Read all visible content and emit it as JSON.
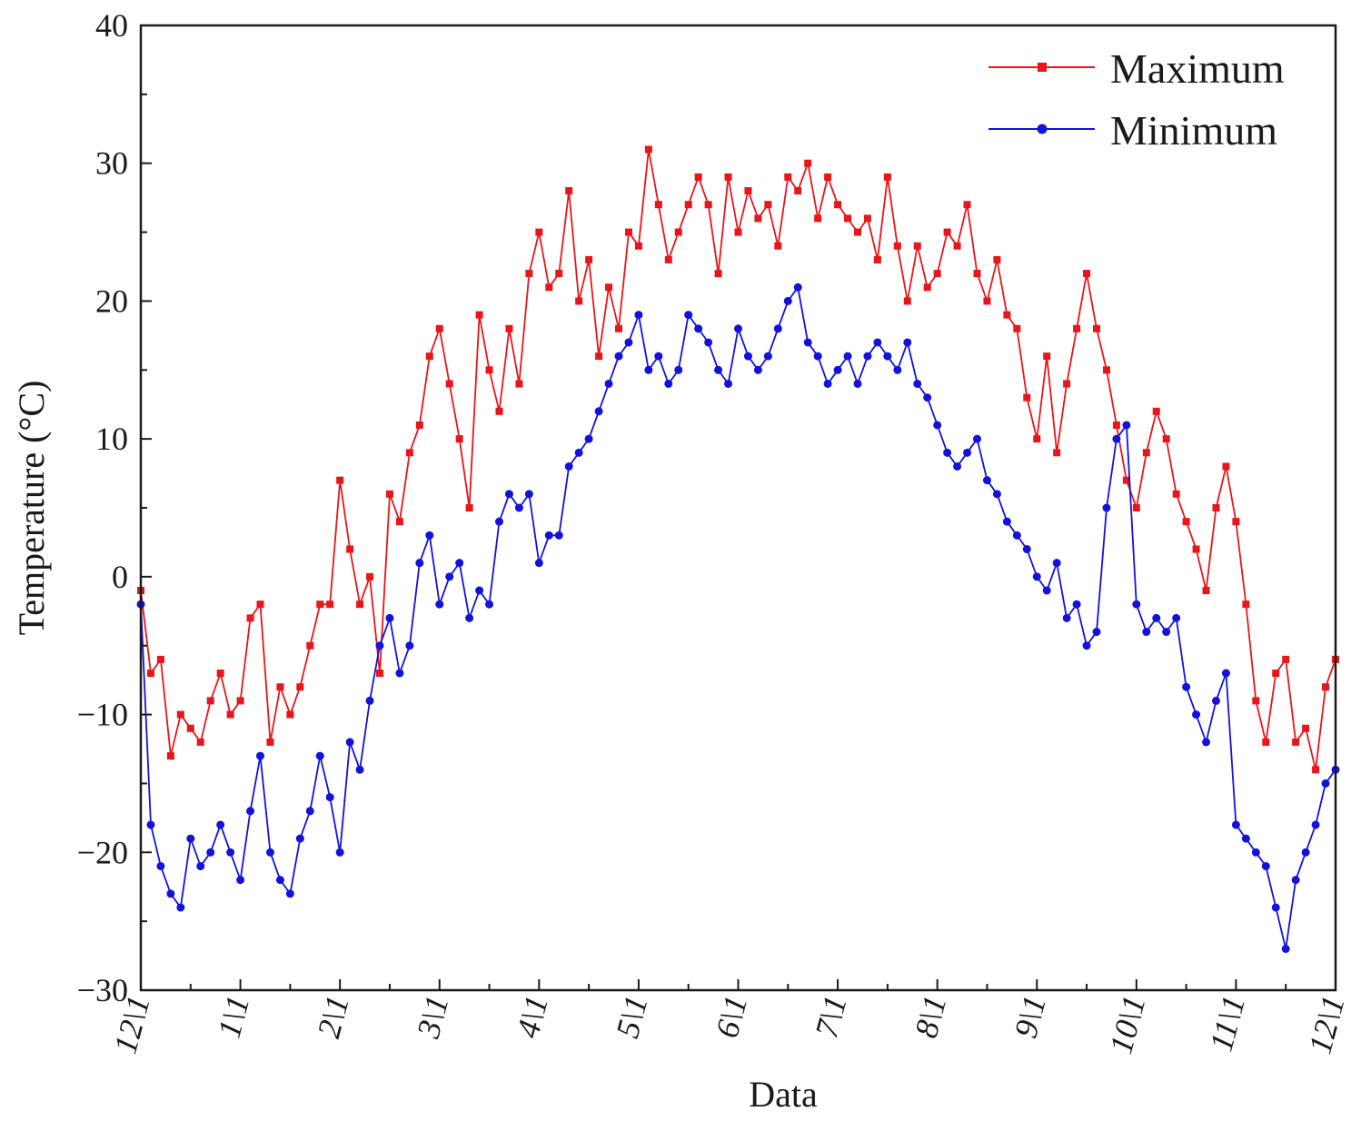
{
  "chart_data": {
    "type": "line",
    "title": "",
    "xlabel": "Data",
    "ylabel": "Temperature (°C)",
    "ylim": [
      -30,
      40
    ],
    "yticks": [
      -30,
      -20,
      -10,
      0,
      10,
      20,
      30,
      40
    ],
    "ytick_labels": [
      "−30",
      "−20",
      "−10",
      "0",
      "10",
      "20",
      "30",
      "40"
    ],
    "xlim": [
      0,
      12
    ],
    "xtick_labels": [
      "12\\1",
      "1\\1",
      "2\\1",
      "3\\1",
      "4\\1",
      "5\\1",
      "6\\1",
      "7\\1",
      "8\\1",
      "9\\1",
      "10\\1",
      "11\\1",
      "12\\1"
    ],
    "grid": false,
    "legend_position": "top-right",
    "series": [
      {
        "name": "Maximum",
        "color": "#e8151b",
        "marker": "square",
        "x": [
          0.0,
          0.1,
          0.2,
          0.3,
          0.4,
          0.5,
          0.6,
          0.7,
          0.8,
          0.9,
          1.0,
          1.1,
          1.2,
          1.3,
          1.4,
          1.5,
          1.6,
          1.7,
          1.8,
          1.9,
          2.0,
          2.1,
          2.2,
          2.3,
          2.4,
          2.5,
          2.6,
          2.7,
          2.8,
          2.9,
          3.0,
          3.1,
          3.2,
          3.3,
          3.4,
          3.5,
          3.6,
          3.7,
          3.8,
          3.9,
          4.0,
          4.1,
          4.2,
          4.3,
          4.4,
          4.5,
          4.6,
          4.7,
          4.8,
          4.9,
          5.0,
          5.1,
          5.2,
          5.3,
          5.4,
          5.5,
          5.6,
          5.7,
          5.8,
          5.9,
          6.0,
          6.1,
          6.2,
          6.3,
          6.4,
          6.5,
          6.6,
          6.7,
          6.8,
          6.9,
          7.0,
          7.1,
          7.2,
          7.3,
          7.4,
          7.5,
          7.6,
          7.7,
          7.8,
          7.9,
          8.0,
          8.1,
          8.2,
          8.3,
          8.4,
          8.5,
          8.6,
          8.7,
          8.8,
          8.9,
          9.0,
          9.1,
          9.2,
          9.3,
          9.4,
          9.5,
          9.6,
          9.7,
          9.8,
          9.9,
          10.0,
          10.1,
          10.2,
          10.3,
          10.4,
          10.5,
          10.6,
          10.7,
          10.8,
          10.9,
          11.0,
          11.1,
          11.2,
          11.3,
          11.4,
          11.5,
          11.6,
          11.7,
          11.8,
          11.9,
          12.0
        ],
        "values": [
          -1,
          -7,
          -6,
          -13,
          -10,
          -11,
          -12,
          -9,
          -7,
          -10,
          -9,
          -3,
          -2,
          -12,
          -8,
          -10,
          -8,
          -5,
          -2,
          -2,
          7,
          2,
          -2,
          0,
          -7,
          6,
          4,
          9,
          11,
          16,
          18,
          14,
          10,
          5,
          19,
          15,
          12,
          18,
          14,
          22,
          25,
          21,
          22,
          28,
          20,
          23,
          16,
          21,
          18,
          25,
          24,
          31,
          27,
          23,
          25,
          27,
          29,
          27,
          22,
          29,
          25,
          28,
          26,
          27,
          24,
          29,
          28,
          30,
          26,
          29,
          27,
          26,
          25,
          26,
          23,
          29,
          24,
          20,
          24,
          21,
          22,
          25,
          24,
          27,
          22,
          20,
          23,
          19,
          18,
          13,
          10,
          16,
          9,
          14,
          18,
          22,
          18,
          15,
          11,
          7,
          5,
          9,
          12,
          10,
          6,
          4,
          2,
          -1,
          5,
          8,
          4,
          -2,
          -9,
          -12,
          -7,
          -6,
          -12,
          -11,
          -14,
          -8,
          -6
        ]
      },
      {
        "name": "Minimum",
        "color": "#1212dc",
        "marker": "circle",
        "x": [
          0.0,
          0.1,
          0.2,
          0.3,
          0.4,
          0.5,
          0.6,
          0.7,
          0.8,
          0.9,
          1.0,
          1.1,
          1.2,
          1.3,
          1.4,
          1.5,
          1.6,
          1.7,
          1.8,
          1.9,
          2.0,
          2.1,
          2.2,
          2.3,
          2.4,
          2.5,
          2.6,
          2.7,
          2.8,
          2.9,
          3.0,
          3.1,
          3.2,
          3.3,
          3.4,
          3.5,
          3.6,
          3.7,
          3.8,
          3.9,
          4.0,
          4.1,
          4.2,
          4.3,
          4.4,
          4.5,
          4.6,
          4.7,
          4.8,
          4.9,
          5.0,
          5.1,
          5.2,
          5.3,
          5.4,
          5.5,
          5.6,
          5.7,
          5.8,
          5.9,
          6.0,
          6.1,
          6.2,
          6.3,
          6.4,
          6.5,
          6.6,
          6.7,
          6.8,
          6.9,
          7.0,
          7.1,
          7.2,
          7.3,
          7.4,
          7.5,
          7.6,
          7.7,
          7.8,
          7.9,
          8.0,
          8.1,
          8.2,
          8.3,
          8.4,
          8.5,
          8.6,
          8.7,
          8.8,
          8.9,
          9.0,
          9.1,
          9.2,
          9.3,
          9.4,
          9.5,
          9.6,
          9.7,
          9.8,
          9.9,
          10.0,
          10.1,
          10.2,
          10.3,
          10.4,
          10.5,
          10.6,
          10.7,
          10.8,
          10.9,
          11.0,
          11.1,
          11.2,
          11.3,
          11.4,
          11.5,
          11.6,
          11.7,
          11.8,
          11.9,
          12.0
        ],
        "values": [
          -2,
          -18,
          -21,
          -23,
          -24,
          -19,
          -21,
          -20,
          -18,
          -20,
          -22,
          -17,
          -13,
          -20,
          -22,
          -23,
          -19,
          -17,
          -13,
          -16,
          -20,
          -12,
          -14,
          -9,
          -5,
          -3,
          -7,
          -5,
          1,
          3,
          -2,
          0,
          1,
          -3,
          -1,
          -2,
          4,
          6,
          5,
          6,
          1,
          3,
          3,
          8,
          9,
          10,
          12,
          14,
          16,
          17,
          19,
          15,
          16,
          14,
          15,
          19,
          18,
          17,
          15,
          14,
          18,
          16,
          15,
          16,
          18,
          20,
          21,
          17,
          16,
          14,
          15,
          16,
          14,
          16,
          17,
          16,
          15,
          17,
          14,
          13,
          11,
          9,
          8,
          9,
          10,
          7,
          6,
          4,
          3,
          2,
          0,
          -1,
          1,
          -3,
          -2,
          -5,
          -4,
          5,
          10,
          11,
          -2,
          -4,
          -3,
          -4,
          -3,
          -8,
          -10,
          -12,
          -9,
          -7,
          -18,
          -19,
          -20,
          -21,
          -24,
          -27,
          -22,
          -20,
          -18,
          -15,
          -14
        ]
      }
    ]
  }
}
